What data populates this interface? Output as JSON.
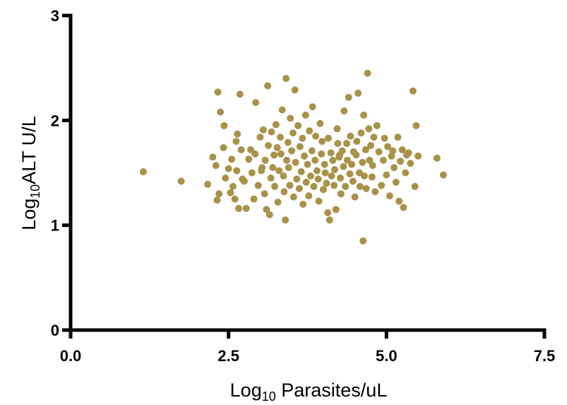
{
  "chart_data": {
    "type": "scatter",
    "xlabel_prefix": "Log",
    "xlabel_sub": "10",
    "xlabel_rest": " Parasites/uL",
    "ylabel_prefix": "Log",
    "ylabel_sub": "10",
    "ylabel_rest": "ALT U/L",
    "xlim": [
      0,
      7.5
    ],
    "ylim": [
      0,
      3
    ],
    "xticks": [
      0,
      2.5,
      5,
      7.5
    ],
    "xtick_labels": [
      "0.0",
      "2.5",
      "5.0",
      "7.5"
    ],
    "yticks": [
      0,
      1,
      2,
      3
    ],
    "ytick_labels": [
      "0",
      "1",
      "2",
      "3"
    ],
    "grid": false,
    "marker_color": "#A89249",
    "points": [
      [
        1.15,
        1.51
      ],
      [
        1.75,
        1.42
      ],
      [
        2.17,
        1.39
      ],
      [
        2.25,
        1.65
      ],
      [
        2.3,
        1.57
      ],
      [
        2.32,
        1.24
      ],
      [
        2.35,
        1.3
      ],
      [
        2.33,
        2.27
      ],
      [
        2.37,
        2.08
      ],
      [
        2.42,
        1.74
      ],
      [
        2.43,
        1.95
      ],
      [
        2.45,
        1.45
      ],
      [
        2.5,
        1.54
      ],
      [
        2.53,
        1.31
      ],
      [
        2.55,
        1.63
      ],
      [
        2.57,
        1.37
      ],
      [
        2.6,
        1.25
      ],
      [
        2.62,
        1.8
      ],
      [
        2.63,
        1.52
      ],
      [
        2.64,
        1.87
      ],
      [
        2.66,
        1.16
      ],
      [
        2.68,
        2.25
      ],
      [
        2.7,
        1.72
      ],
      [
        2.72,
        1.44
      ],
      [
        2.78,
        1.16
      ],
      [
        2.82,
        1.63
      ],
      [
        2.85,
        1.72
      ],
      [
        2.87,
        1.5
      ],
      [
        2.9,
        1.25
      ],
      [
        2.92,
        1.68
      ],
      [
        2.93,
        2.17
      ],
      [
        2.97,
        1.38
      ],
      [
        3.0,
        1.84
      ],
      [
        3.03,
        1.55
      ],
      [
        3.05,
        1.91
      ],
      [
        3.07,
        1.3
      ],
      [
        3.08,
        1.62
      ],
      [
        3.1,
        1.15
      ],
      [
        3.12,
        2.33
      ],
      [
        3.13,
        1.76
      ],
      [
        3.15,
        1.1
      ],
      [
        3.17,
        1.45
      ],
      [
        3.18,
        1.89
      ],
      [
        3.2,
        1.55
      ],
      [
        3.22,
        1.67
      ],
      [
        3.23,
        1.37
      ],
      [
        3.25,
        1.96
      ],
      [
        3.27,
        1.74
      ],
      [
        3.28,
        1.22
      ],
      [
        3.3,
        1.52
      ],
      [
        3.32,
        1.84
      ],
      [
        3.33,
        1.68
      ],
      [
        3.35,
        2.1
      ],
      [
        3.37,
        1.47
      ],
      [
        3.38,
        1.32
      ],
      [
        3.4,
        1.05
      ],
      [
        3.41,
        2.4
      ],
      [
        3.42,
        1.62
      ],
      [
        3.44,
        1.79
      ],
      [
        3.45,
        1.55
      ],
      [
        3.47,
        1.38
      ],
      [
        3.48,
        2.02
      ],
      [
        3.5,
        1.71
      ],
      [
        3.52,
        1.88
      ],
      [
        3.53,
        1.27
      ],
      [
        3.55,
        2.29
      ],
      [
        3.56,
        1.6
      ],
      [
        3.58,
        1.44
      ],
      [
        3.6,
        1.95
      ],
      [
        3.62,
        1.35
      ],
      [
        3.63,
        1.75
      ],
      [
        3.65,
        1.51
      ],
      [
        3.67,
        1.83
      ],
      [
        3.68,
        1.2
      ],
      [
        3.7,
        1.66
      ],
      [
        3.72,
        2.05
      ],
      [
        3.73,
        1.41
      ],
      [
        3.75,
        1.58
      ],
      [
        3.77,
        1.28
      ],
      [
        3.78,
        1.9
      ],
      [
        3.8,
        1.47
      ],
      [
        3.82,
        1.71
      ],
      [
        3.83,
        2.13
      ],
      [
        3.85,
        1.37
      ],
      [
        3.87,
        1.62
      ],
      [
        3.88,
        1.85
      ],
      [
        3.9,
        1.52
      ],
      [
        3.92,
        1.44
      ],
      [
        3.93,
        1.23
      ],
      [
        3.95,
        1.97
      ],
      [
        3.97,
        1.68
      ],
      [
        3.98,
        1.8
      ],
      [
        4.0,
        1.34
      ],
      [
        4.02,
        1.58
      ],
      [
        4.03,
        1.5
      ],
      [
        4.05,
        1.4
      ],
      [
        4.07,
        1.12
      ],
      [
        4.08,
        1.83
      ],
      [
        4.1,
        1.05
      ],
      [
        4.12,
        1.69
      ],
      [
        4.13,
        1.47
      ],
      [
        4.15,
        1.62
      ],
      [
        4.17,
        1.38
      ],
      [
        4.18,
        1.53
      ],
      [
        4.2,
        1.15
      ],
      [
        4.22,
        1.92
      ],
      [
        4.23,
        1.78
      ],
      [
        4.25,
        1.65
      ],
      [
        4.27,
        1.45
      ],
      [
        4.28,
        1.3
      ],
      [
        4.3,
        1.71
      ],
      [
        4.32,
        1.56
      ],
      [
        4.33,
        2.09
      ],
      [
        4.35,
        1.37
      ],
      [
        4.37,
        1.78
      ],
      [
        4.38,
        1.62
      ],
      [
        4.4,
        2.22
      ],
      [
        4.42,
        1.49
      ],
      [
        4.43,
        1.85
      ],
      [
        4.45,
        1.58
      ],
      [
        4.47,
        1.42
      ],
      [
        4.48,
        1.7
      ],
      [
        4.5,
        1.27
      ],
      [
        4.52,
        1.67
      ],
      [
        4.53,
        1.8
      ],
      [
        4.55,
        2.26
      ],
      [
        4.57,
        1.5
      ],
      [
        4.58,
        1.37
      ],
      [
        4.6,
        1.88
      ],
      [
        4.62,
        1.6
      ],
      [
        4.63,
        0.85
      ],
      [
        4.64,
        2.05
      ],
      [
        4.65,
        1.47
      ],
      [
        4.67,
        1.72
      ],
      [
        4.68,
        1.35
      ],
      [
        4.7,
        2.45
      ],
      [
        4.72,
        1.92
      ],
      [
        4.73,
        1.62
      ],
      [
        4.75,
        1.76
      ],
      [
        4.77,
        1.46
      ],
      [
        4.78,
        1.57
      ],
      [
        4.8,
        1.84
      ],
      [
        4.82,
        1.32
      ],
      [
        4.85,
        1.95
      ],
      [
        4.88,
        1.7
      ],
      [
        4.92,
        1.38
      ],
      [
        4.95,
        1.62
      ],
      [
        4.97,
        1.83
      ],
      [
        5.0,
        1.48
      ],
      [
        5.02,
        1.75
      ],
      [
        5.05,
        1.28
      ],
      [
        5.08,
        1.66
      ],
      [
        5.1,
        1.71
      ],
      [
        5.12,
        1.55
      ],
      [
        5.15,
        1.41
      ],
      [
        5.18,
        1.84
      ],
      [
        5.2,
        1.23
      ],
      [
        5.22,
        1.61
      ],
      [
        5.25,
        1.72
      ],
      [
        5.27,
        1.17
      ],
      [
        5.3,
        1.5
      ],
      [
        5.32,
        1.67
      ],
      [
        5.35,
        1.69
      ],
      [
        5.38,
        1.59
      ],
      [
        5.42,
        2.28
      ],
      [
        5.45,
        1.37
      ],
      [
        5.47,
        1.95
      ],
      [
        5.5,
        1.66
      ],
      [
        5.8,
        1.64
      ],
      [
        5.9,
        1.48
      ],
      [
        4.26,
        1.67
      ],
      [
        3.02,
        1.52
      ],
      [
        2.75,
        1.42
      ]
    ]
  }
}
